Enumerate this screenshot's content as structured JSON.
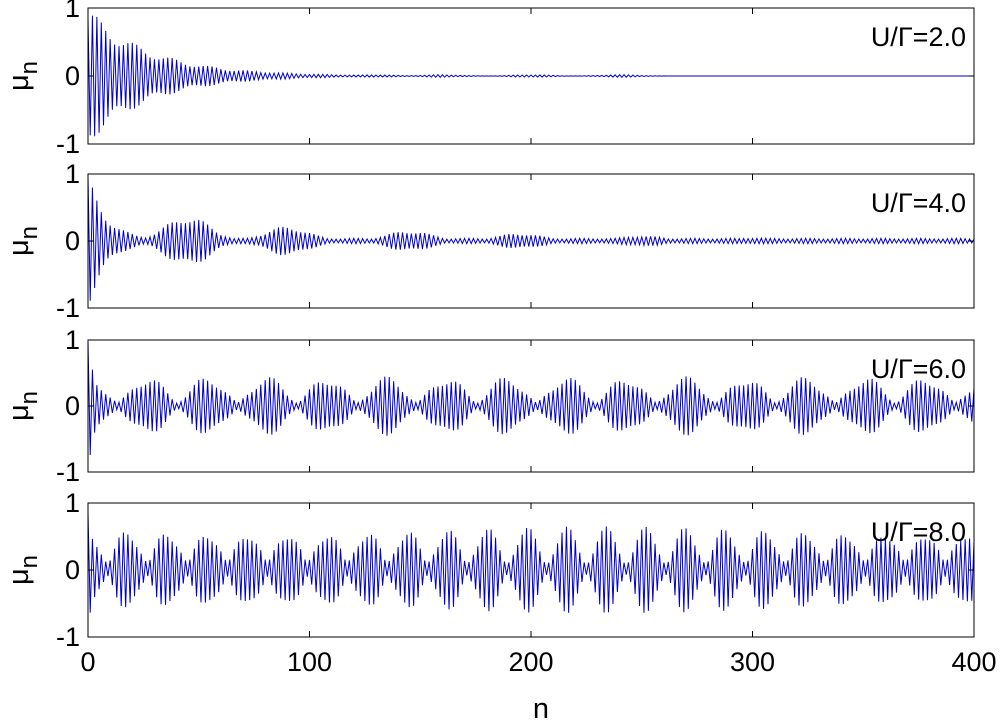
{
  "chart_data": [
    {
      "type": "line",
      "annotation": "U/Γ=2.0",
      "ylabel": "μ",
      "ylabel_sub": "n",
      "xlim": [
        0,
        400
      ],
      "ylim": [
        -1,
        1
      ],
      "yticks": [
        -1,
        0,
        1
      ],
      "xticks_visible": false,
      "series": [
        {
          "color": "#0000cc",
          "envelope": {
            "initial_amplitude": 1.0,
            "decay_to_near_zero_by_n": 120,
            "residual_bursts_near_n": [
              130,
              160,
              200,
              240
            ],
            "residual_amplitude": 0.02
          }
        }
      ]
    },
    {
      "type": "line",
      "annotation": "U/Γ=4.0",
      "ylabel": "μ",
      "ylabel_sub": "n",
      "xlim": [
        0,
        400
      ],
      "ylim": [
        -1,
        1
      ],
      "yticks": [
        -1,
        0,
        1
      ],
      "xticks_visible": false,
      "series": [
        {
          "color": "#0000cc",
          "envelope": {
            "initial_amplitude": 1.0,
            "revival_peaks": [
              [
                45,
                0.38
              ],
              [
                90,
                0.22
              ],
              [
                145,
                0.16
              ],
              [
                195,
                0.12
              ],
              [
                250,
                0.08
              ],
              [
                300,
                0.05
              ]
            ],
            "late_amplitude": 0.04
          }
        }
      ]
    },
    {
      "type": "line",
      "annotation": "U/Γ=6.0",
      "ylabel": "μ",
      "ylabel_sub": "n",
      "xlim": [
        0,
        400
      ],
      "ylim": [
        -1,
        1
      ],
      "yticks": [
        -1,
        0,
        1
      ],
      "xticks_visible": false,
      "series": [
        {
          "color": "#0000cc",
          "envelope": {
            "initial_amplitude": 1.0,
            "sustained_amplitude": 0.45,
            "beat_minimum": 0.05,
            "beat_period_n": 27
          }
        }
      ]
    },
    {
      "type": "line",
      "annotation": "U/Γ=8.0",
      "ylabel": "μ",
      "ylabel_sub": "n",
      "xlabel": "n",
      "xlim": [
        0,
        400
      ],
      "ylim": [
        -1,
        1
      ],
      "yticks": [
        -1,
        0,
        1
      ],
      "xticks": [
        0,
        100,
        200,
        300,
        400
      ],
      "xticks_visible": true,
      "series": [
        {
          "color": "#0000cc",
          "envelope": {
            "initial_amplitude": 1.0,
            "sustained_amplitude": 0.65,
            "beat_minimum": 0.1,
            "beat_period_n": 18
          }
        }
      ]
    }
  ]
}
